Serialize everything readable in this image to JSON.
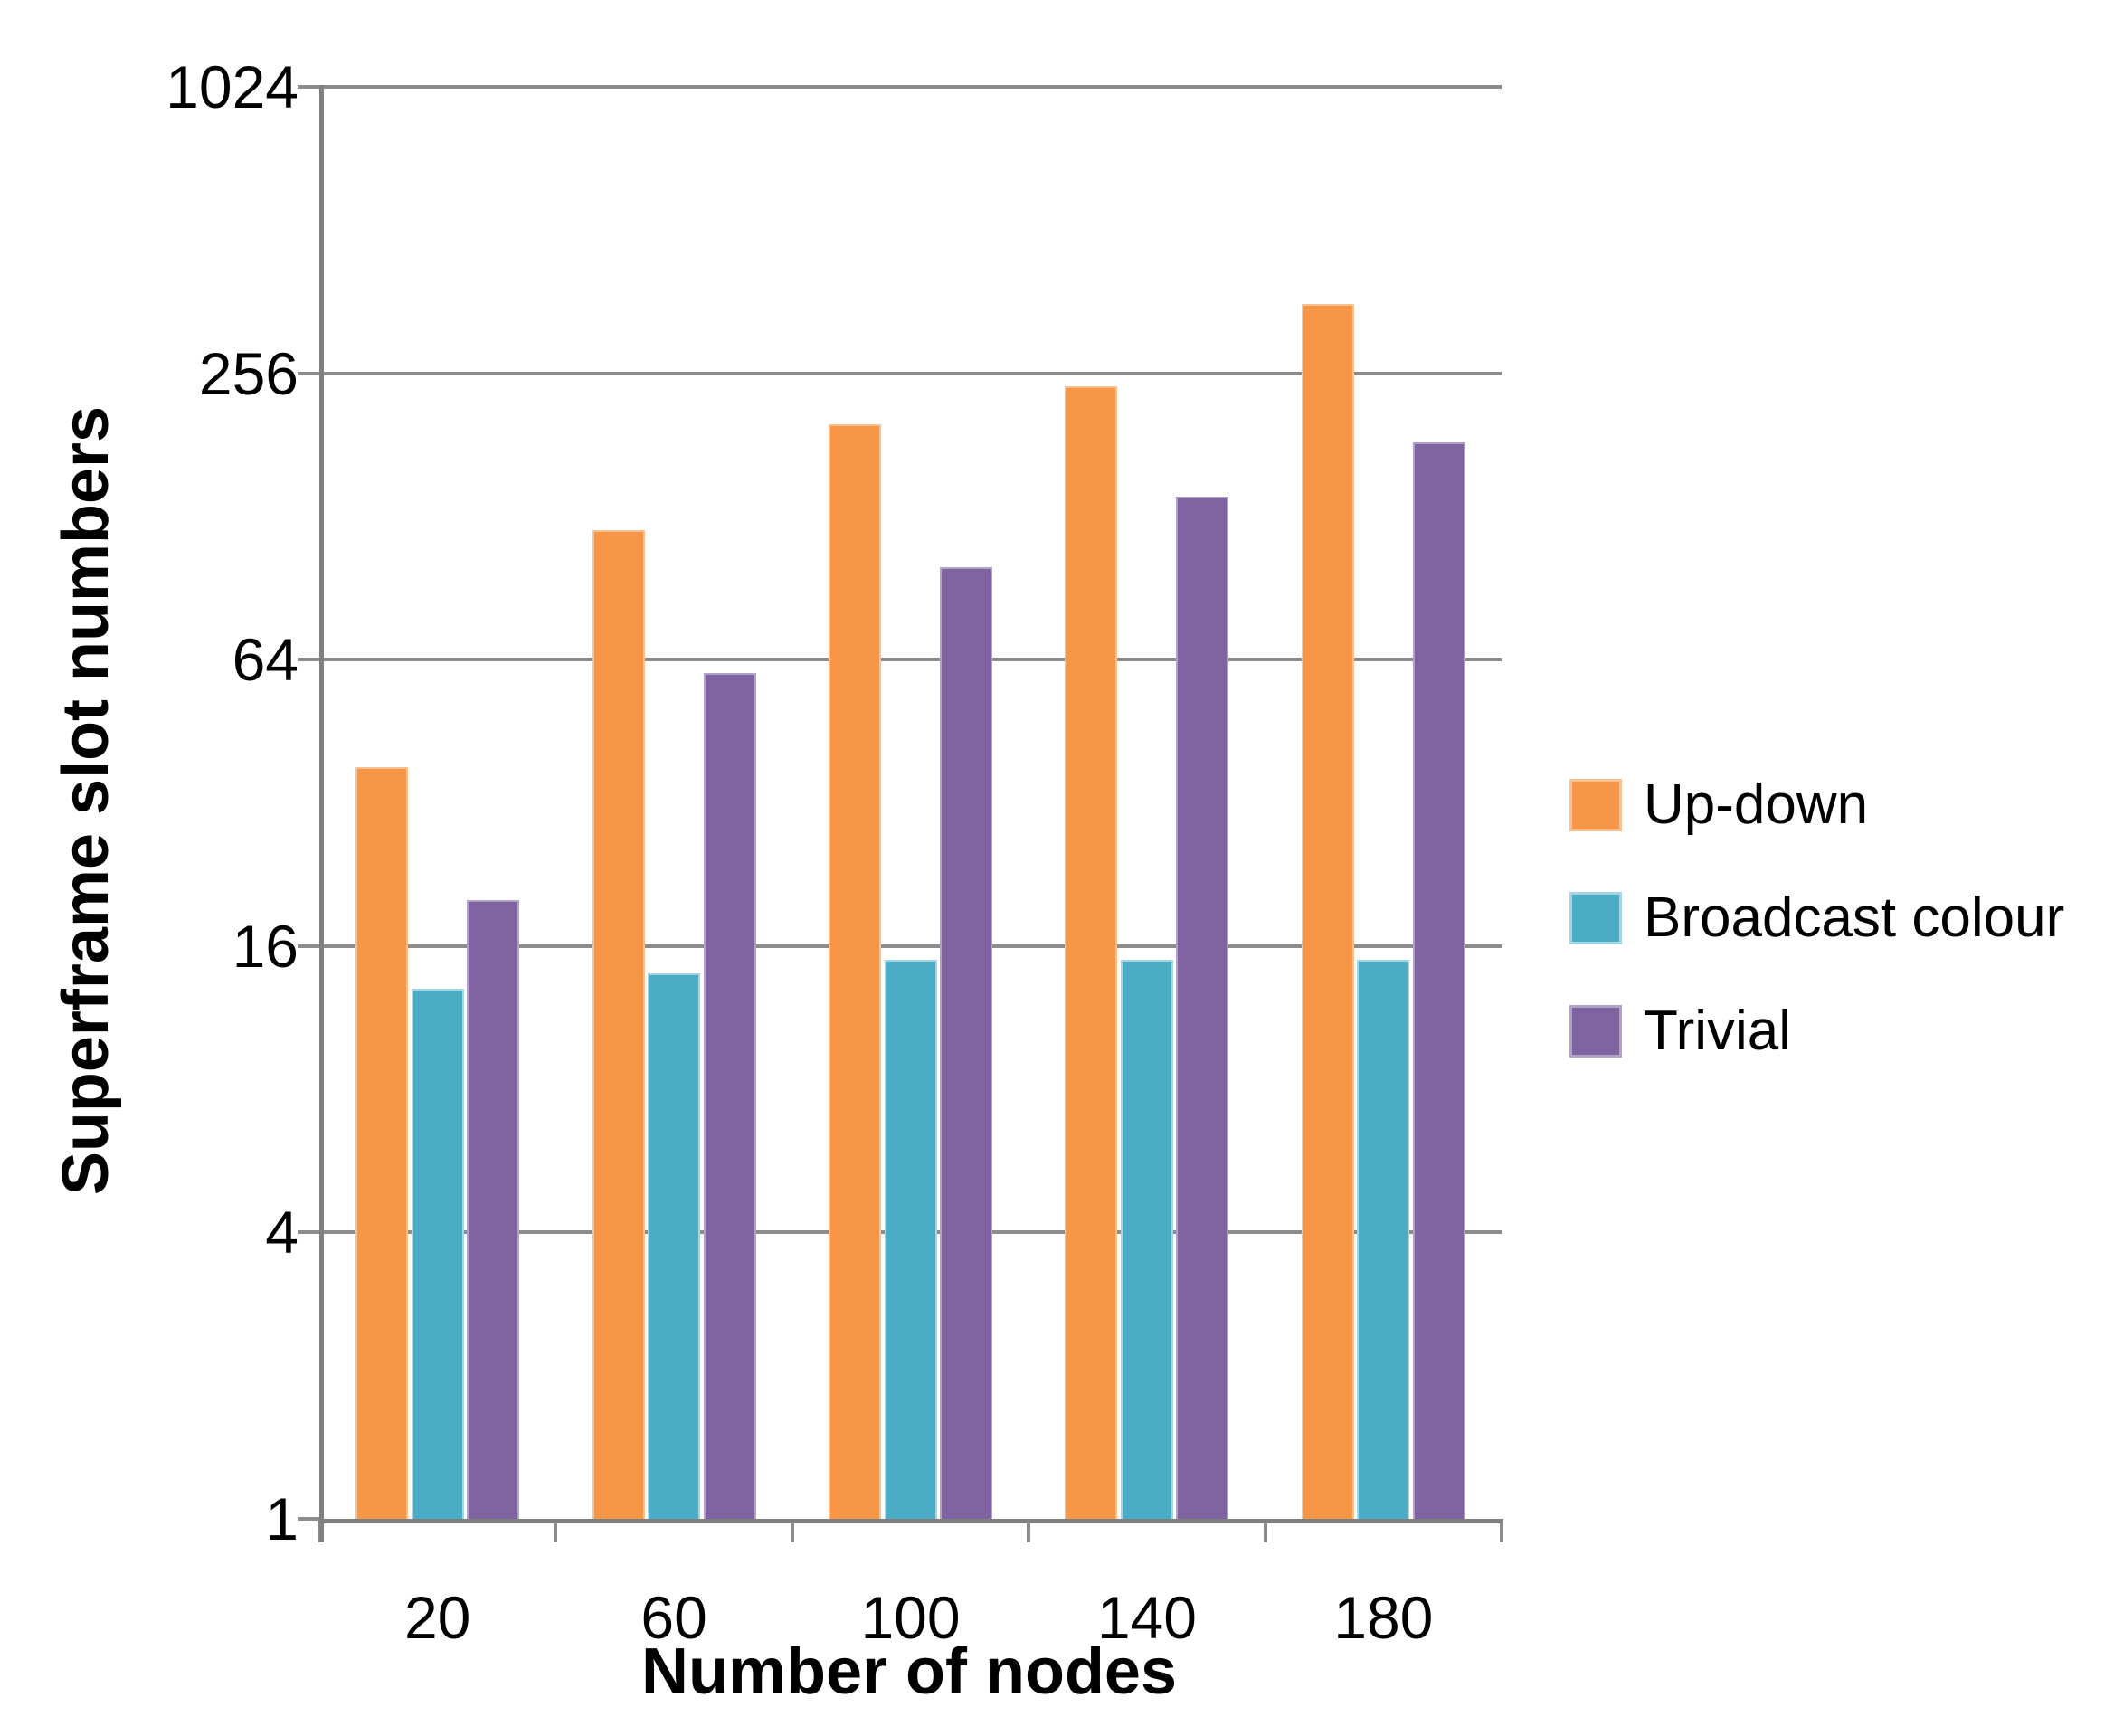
{
  "chart_data": {
    "type": "bar",
    "title": "",
    "xlabel": "Number of nodes",
    "ylabel": "Superframe slot numbers",
    "categories": [
      "20",
      "60",
      "100",
      "140",
      "180"
    ],
    "series": [
      {
        "name": "Up-down",
        "color": "#F79646",
        "border": "#FAC08F",
        "values": [
          38,
          120,
          200,
          240,
          358
        ]
      },
      {
        "name": "Broadcast colour",
        "color": "#4BACC6",
        "border": "#A5D5E2",
        "values": [
          13,
          14,
          15,
          15,
          15
        ]
      },
      {
        "name": "Trivial",
        "color": "#8064A2",
        "border": "#B2A1C7",
        "values": [
          20,
          60,
          100,
          141,
          183
        ]
      }
    ],
    "y_axis": {
      "scale": "log",
      "log_base": 4,
      "ticks": [
        1,
        4,
        16,
        64,
        256,
        1024
      ],
      "ylim": [
        1,
        1024
      ]
    },
    "x_axis": {
      "ticks": [
        "20",
        "60",
        "100",
        "140",
        "180"
      ]
    },
    "grid": "horizontal",
    "legend_position": "right",
    "colors": {
      "grid": "#8C8C8C",
      "axis": "#808080",
      "background": "#FFFFFF",
      "text": "#000000"
    }
  }
}
